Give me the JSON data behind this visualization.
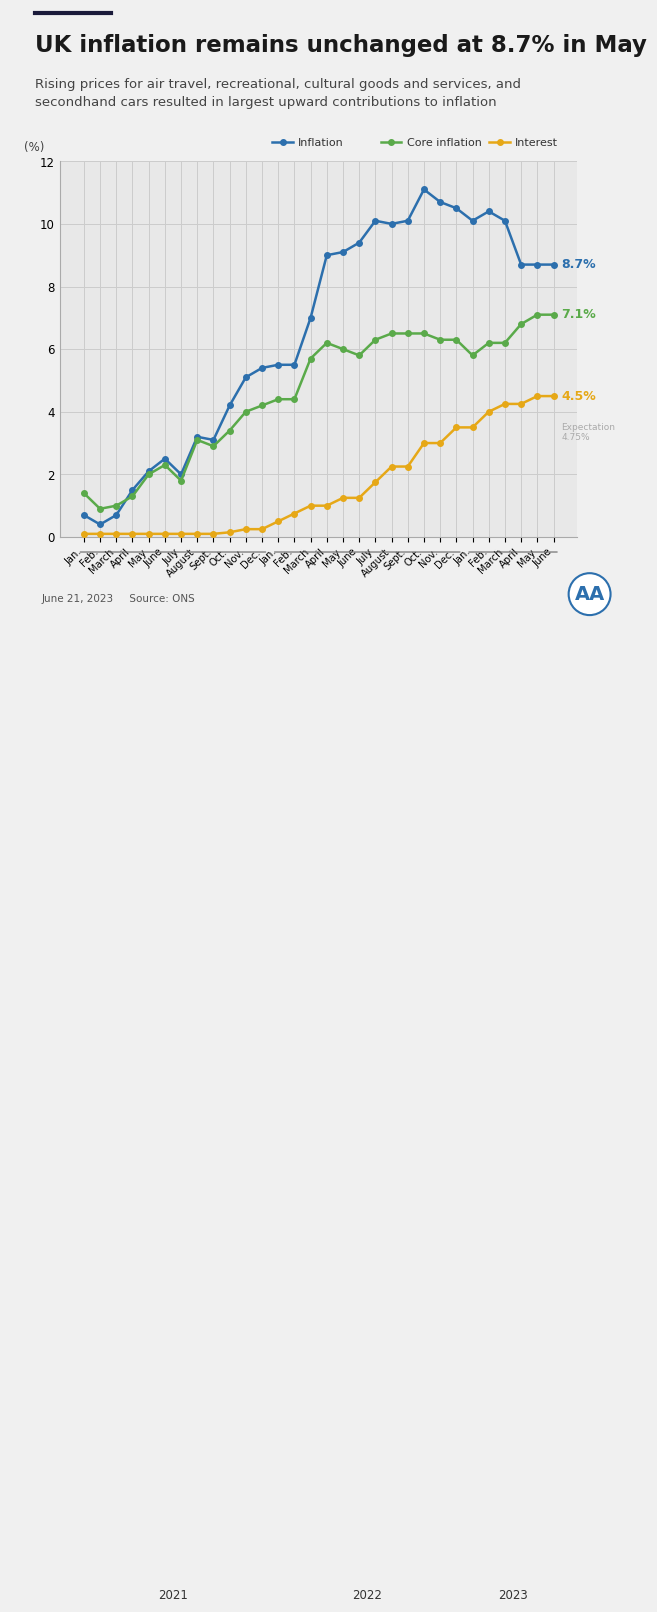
{
  "title": "UK inflation remains unchanged at 8.7% in May",
  "subtitle": "Rising prices for air travel, recreational, cultural goods and services, and\nsecondhand cars resulted in largest upward contributions to inflation",
  "footer": "June 21, 2023     Source: ONS",
  "ylabel": "(%)",
  "ylim": [
    0,
    12
  ],
  "yticks": [
    0,
    2,
    4,
    6,
    8,
    10,
    12
  ],
  "background_color": "#f0f0f0",
  "plot_bg_color": "#e8e8e8",
  "months_2021": [
    "Jan.",
    "Feb.",
    "March",
    "April",
    "May",
    "June",
    "July",
    "August",
    "Sept.",
    "Oct.",
    "Nov.",
    "Dec."
  ],
  "months_2022": [
    "Jan.",
    "Feb.",
    "March",
    "April",
    "May",
    "June",
    "July",
    "August",
    "Sept.",
    "Oct.",
    "Nov.",
    "Dec."
  ],
  "months_2023": [
    "Jan.",
    "Feb.",
    "March",
    "April",
    "May",
    "June"
  ],
  "inflation": [
    0.7,
    0.4,
    0.7,
    1.5,
    2.1,
    2.5,
    2.0,
    3.2,
    3.1,
    4.2,
    5.1,
    5.4,
    5.5,
    5.5,
    7.0,
    9.0,
    9.1,
    9.4,
    10.1,
    10.0,
    10.1,
    11.1,
    10.7,
    10.5,
    10.1,
    10.4,
    10.1,
    8.7,
    8.7,
    8.7
  ],
  "core_inflation": [
    1.4,
    0.9,
    1.0,
    1.3,
    2.0,
    2.3,
    1.8,
    3.1,
    2.9,
    3.4,
    4.0,
    4.2,
    4.4,
    4.4,
    5.7,
    6.2,
    6.0,
    5.8,
    6.3,
    6.5,
    6.5,
    6.5,
    6.3,
    6.3,
    5.8,
    6.2,
    6.2,
    6.8,
    7.1,
    7.1
  ],
  "interest": [
    0.1,
    0.1,
    0.1,
    0.1,
    0.1,
    0.1,
    0.1,
    0.1,
    0.1,
    0.15,
    0.25,
    0.25,
    0.5,
    0.75,
    1.0,
    1.0,
    1.25,
    1.25,
    1.75,
    2.25,
    2.25,
    3.0,
    3.0,
    3.5,
    3.5,
    4.0,
    4.25,
    4.25,
    4.5,
    4.5
  ],
  "inflation_color": "#2c6fad",
  "core_inflation_color": "#5aaa4a",
  "interest_color": "#e6a817",
  "end_labels": {
    "inflation": "8.7%",
    "core_inflation": "7.1%",
    "interest": "4.5%"
  },
  "expectation_text": "Expectation\n4.75%"
}
